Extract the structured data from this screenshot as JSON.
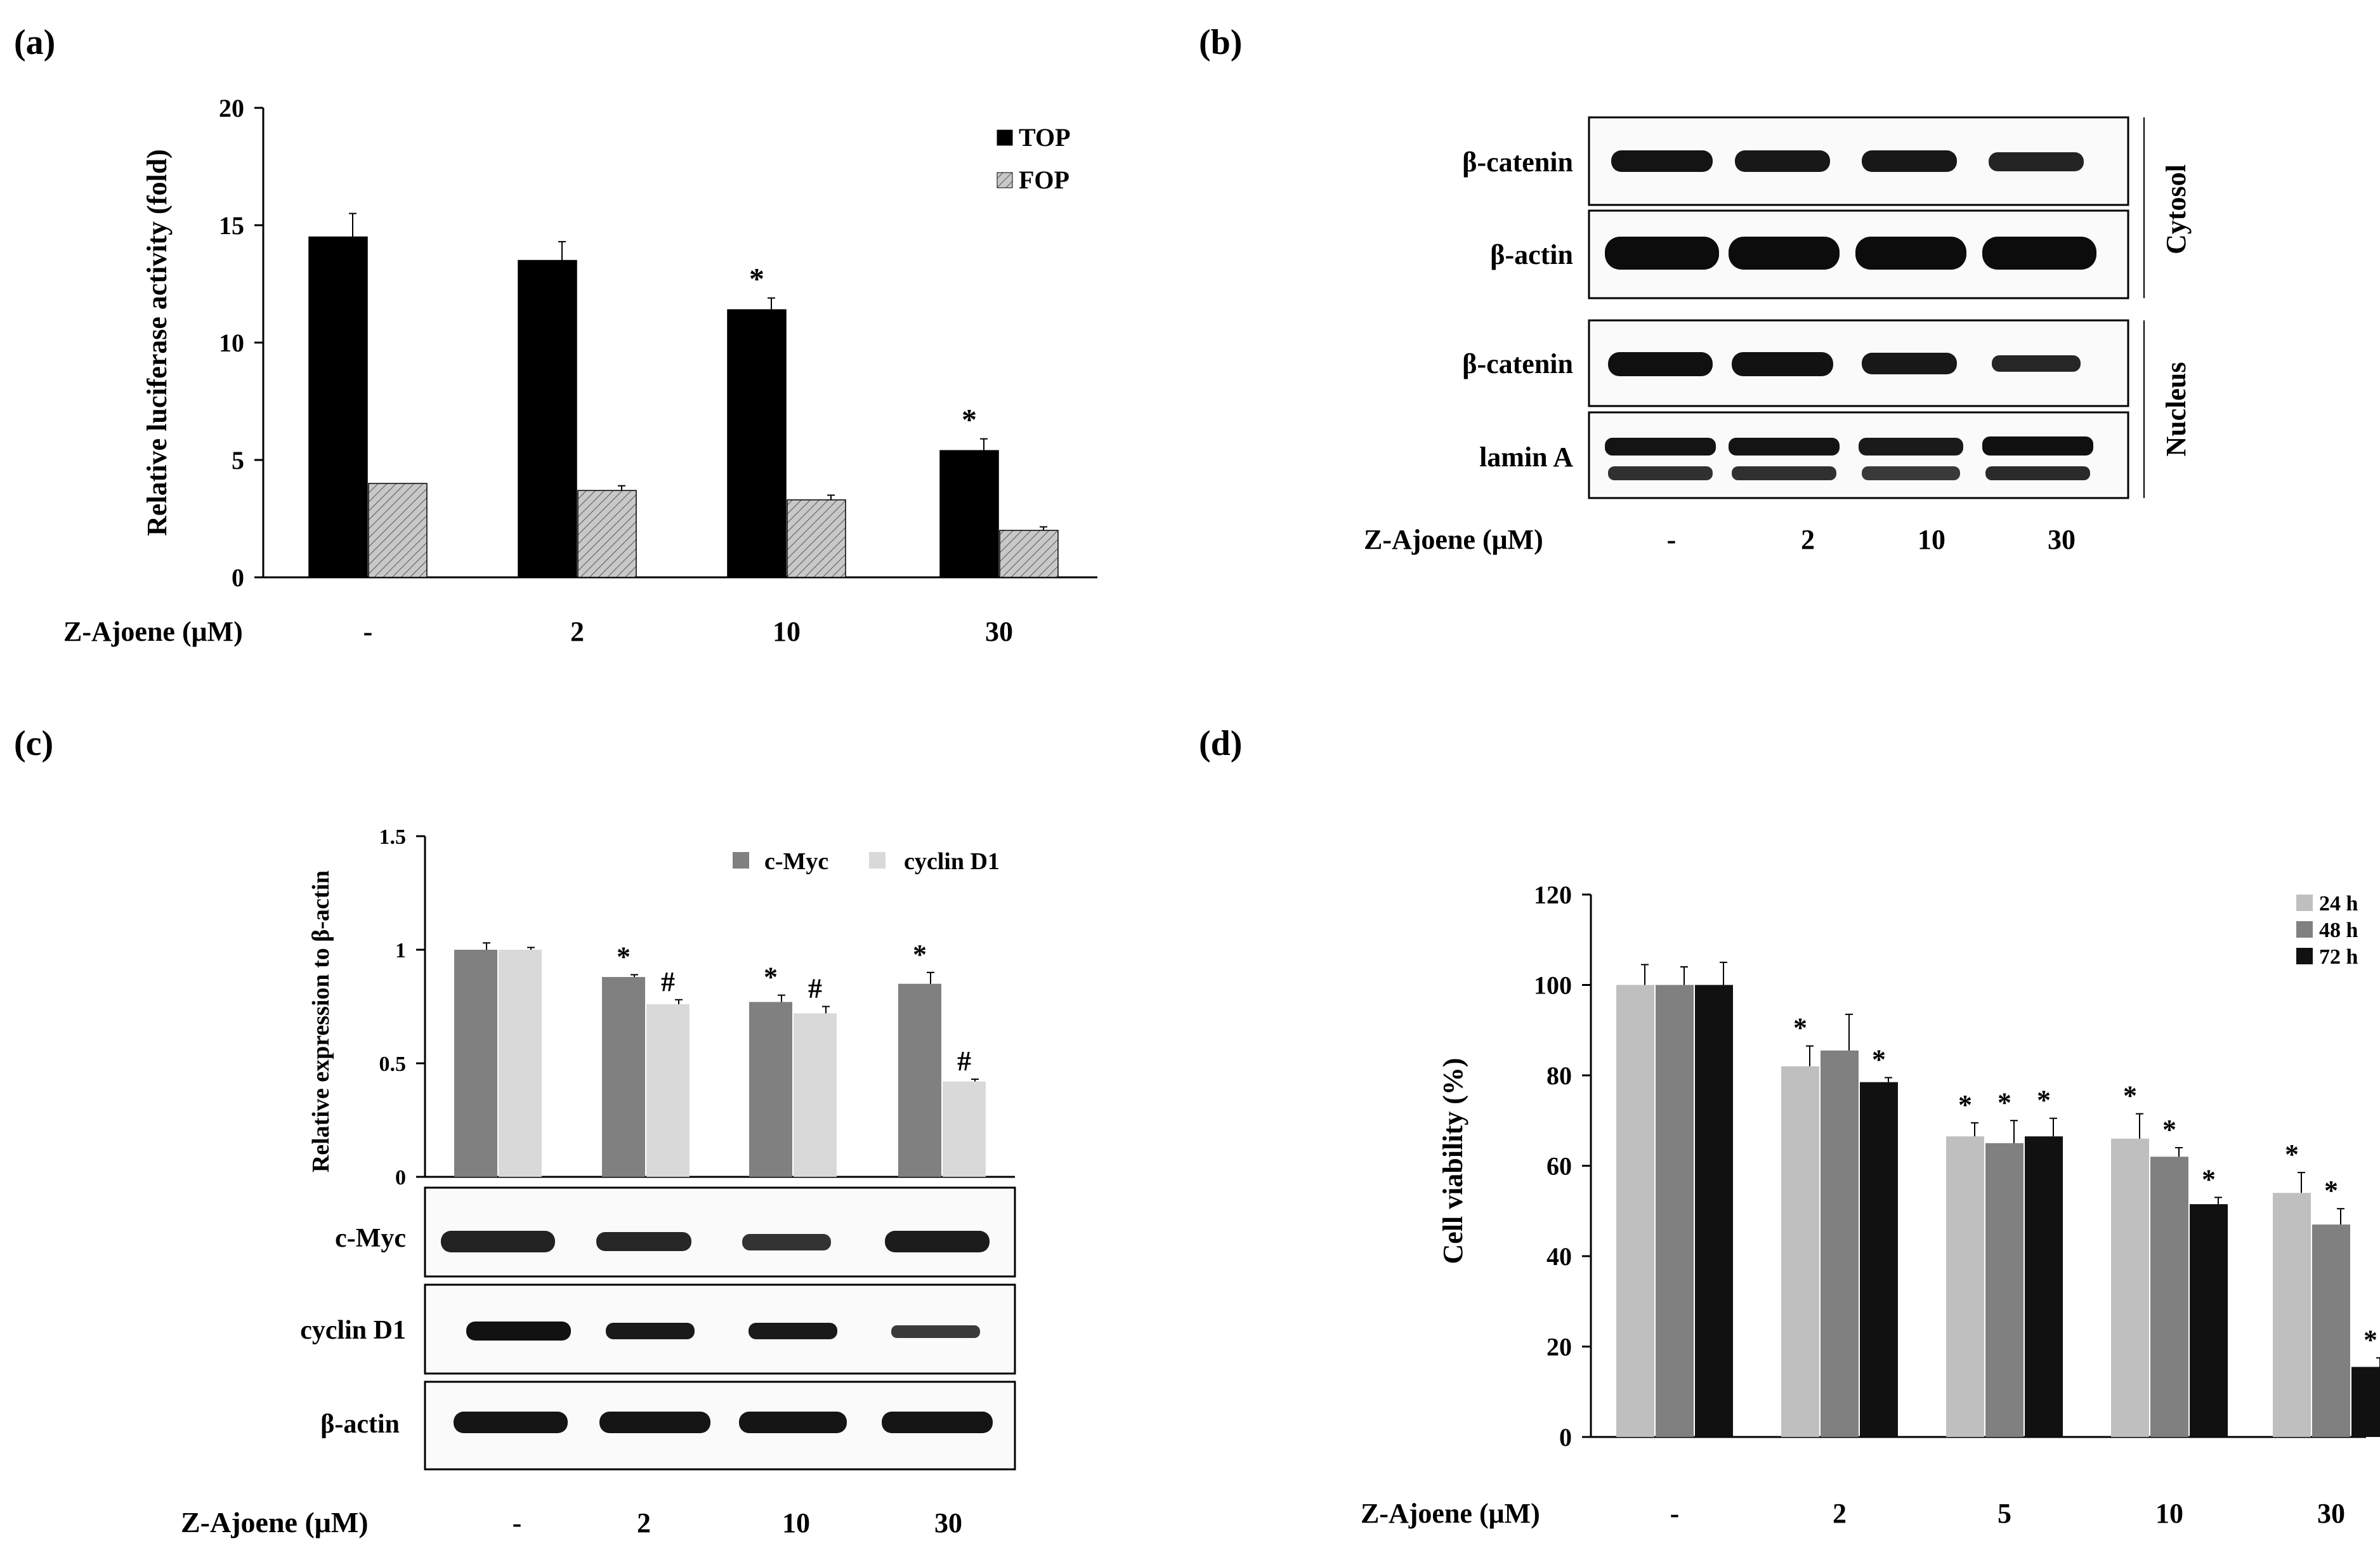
{
  "panels": {
    "a": {
      "label": "(a)"
    },
    "b": {
      "label": "(b)"
    },
    "c": {
      "label": "(c)"
    },
    "d": {
      "label": "(d)"
    }
  },
  "colors": {
    "top": "#000000",
    "fop": "#c8c8c8",
    "cmyc": "#808080",
    "cyclin": "#d9d9d9",
    "h24": "#bfbfbf",
    "h48": "#808080",
    "h72": "#111111"
  },
  "chart_data": [
    {
      "panel": "a",
      "type": "bar",
      "title": "",
      "ylabel": "Relative luciferase activity (fold)",
      "xlabel": "Z-Ajoene (μM)",
      "categories": [
        "-",
        "2",
        "10",
        "30"
      ],
      "ylim": [
        0,
        20
      ],
      "yticks": [
        0,
        5,
        10,
        15,
        20
      ],
      "series": [
        {
          "name": "TOP",
          "values": [
            14.5,
            13.5,
            11.4,
            5.4
          ],
          "errors": [
            1.0,
            0.8,
            0.5,
            0.5
          ],
          "marks": [
            "",
            "",
            "*",
            "*"
          ]
        },
        {
          "name": "FOP",
          "values": [
            4.0,
            3.7,
            3.3,
            2.0
          ],
          "errors": [
            0.0,
            0.2,
            0.2,
            0.15
          ],
          "marks": [
            "",
            "",
            "",
            ""
          ]
        }
      ]
    },
    {
      "panel": "c",
      "type": "bar",
      "title": "",
      "ylabel": "Relative expression to β-actin",
      "xlabel": "Z-Ajoene (μM)",
      "categories": [
        "-",
        "2",
        "10",
        "30"
      ],
      "ylim": [
        0,
        1.5
      ],
      "yticks": [
        0,
        0.5,
        1,
        1.5
      ],
      "ytick_labels": [
        "0",
        "0.5",
        "1",
        "1.5"
      ],
      "series": [
        {
          "name": "c-Myc",
          "values": [
            1.0,
            0.88,
            0.77,
            0.85
          ],
          "errors": [
            0.03,
            0.01,
            0.03,
            0.05
          ],
          "marks": [
            "",
            "*",
            "*",
            "*"
          ]
        },
        {
          "name": "cyclin D1",
          "values": [
            1.0,
            0.76,
            0.72,
            0.42
          ],
          "errors": [
            0.01,
            0.02,
            0.03,
            0.01
          ],
          "marks": [
            "",
            "#",
            "#",
            "#"
          ]
        }
      ]
    },
    {
      "panel": "d",
      "type": "bar",
      "title": "",
      "ylabel": "Cell viability (%)",
      "xlabel": "Z-Ajoene (μM)",
      "categories": [
        "-",
        "2",
        "5",
        "10",
        "30"
      ],
      "ylim": [
        0,
        120
      ],
      "yticks": [
        0,
        20,
        40,
        60,
        80,
        100,
        120
      ],
      "series": [
        {
          "name": "24 h",
          "values": [
            100,
            82,
            66.5,
            66,
            54
          ],
          "errors": [
            4.5,
            4.5,
            3,
            5.5,
            4.5
          ],
          "marks": [
            "",
            "*",
            "*",
            "*",
            "*"
          ]
        },
        {
          "name": "48 h",
          "values": [
            100,
            85.5,
            65,
            62,
            47
          ],
          "errors": [
            4,
            8,
            5,
            2,
            3.5
          ],
          "marks": [
            "",
            "",
            "*",
            "*",
            "*"
          ]
        },
        {
          "name": "72 h",
          "values": [
            100,
            78.5,
            66.5,
            51.5,
            15.5
          ],
          "errors": [
            5,
            1,
            4,
            1.5,
            2
          ],
          "marks": [
            "",
            "*",
            "*",
            "*",
            "*"
          ]
        }
      ]
    }
  ],
  "blots": {
    "b": {
      "rows": [
        "β-catenin",
        "β-actin",
        "β-catenin",
        "lamin A"
      ],
      "fractions": [
        "Cytosol",
        "Nucleus"
      ],
      "xlabel": "Z-Ajoene (μM)",
      "lanes": [
        "-",
        "2",
        "10",
        "30"
      ]
    },
    "c": {
      "rows": [
        "c-Myc",
        "cyclin D1",
        "β-actin"
      ],
      "xlabel": "Z-Ajoene (μM)",
      "lanes": [
        "-",
        "2",
        "10",
        "30"
      ]
    }
  }
}
